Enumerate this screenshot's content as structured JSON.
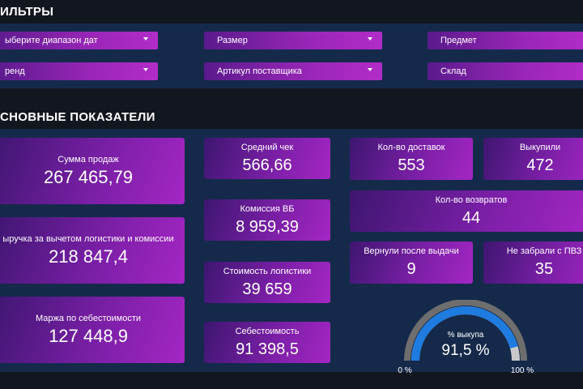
{
  "filters": {
    "title": "ИЛЬТРЫ",
    "items": [
      {
        "label": "ыберите диапазон дат",
        "dropdown": true
      },
      {
        "label": "Размер",
        "dropdown": true
      },
      {
        "label": "Предмет",
        "dropdown": false
      },
      {
        "label": "ренд",
        "dropdown": true
      },
      {
        "label": "Артикул поставщика",
        "dropdown": true
      },
      {
        "label": "Склад",
        "dropdown": false
      }
    ]
  },
  "metrics": {
    "title": "СНОВНЫЕ ПОКАЗАТЕЛИ",
    "sales_sum": {
      "label": "Сумма продаж",
      "value": "267 465,79"
    },
    "revenue_net": {
      "label": "ыручка за вычетом логистики и комиссии",
      "value": "218 847,4"
    },
    "margin": {
      "label": "Маржа по себестоимости",
      "value": "127 448,9"
    },
    "avg_check": {
      "label": "Средний чек",
      "value": "566,66"
    },
    "wb_commission": {
      "label": "Комиссия ВБ",
      "value": "8 959,39"
    },
    "logistics_cost": {
      "label": "Стоимость логистики",
      "value": "39 659"
    },
    "cost_price": {
      "label": "Себестоимость",
      "value": "91 398,5"
    },
    "deliveries": {
      "label": "Кол-во доставок",
      "value": "553"
    },
    "bought": {
      "label": "Выкупили",
      "value": "472"
    },
    "returns": {
      "label": "Кол-во возвратов",
      "value": "44"
    },
    "returned_after": {
      "label": "Вернули после выдачи",
      "value": "9"
    },
    "not_picked": {
      "label": "Не забрали с ПВЗ",
      "value": "35"
    }
  },
  "gauge": {
    "label": "% выкупа",
    "value_text": "91,5 %",
    "value": 91.5,
    "min_label": "0 %",
    "max_label": "100 %",
    "colors": {
      "fill": "#1e7be0",
      "track": "#c8c8c8",
      "outer": "#6e6e6e"
    }
  }
}
